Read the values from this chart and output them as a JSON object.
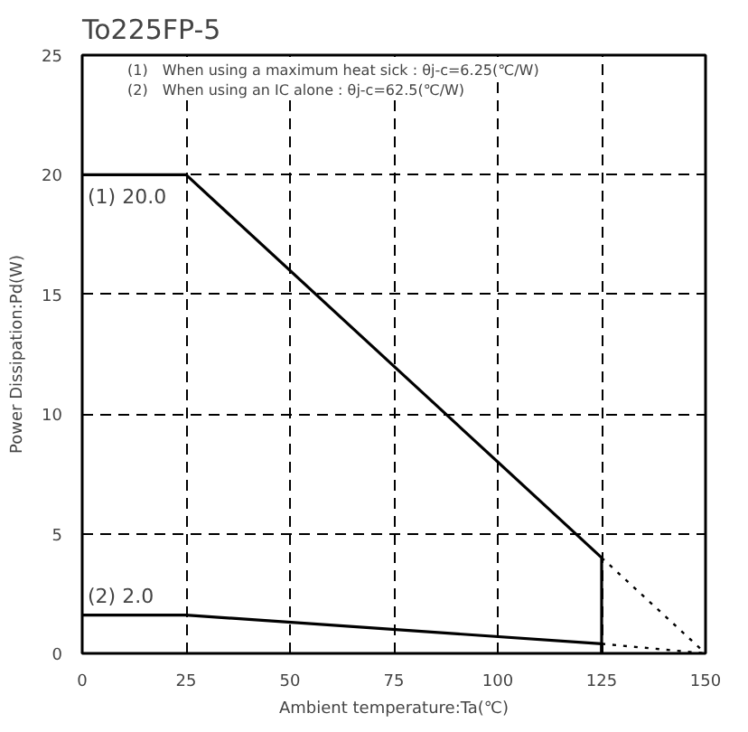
{
  "chart_data": {
    "type": "line",
    "title": "To225FP-5",
    "xlabel": "Ambient temperature:Ta(℃)",
    "ylabel": "Power Dissipation:Pd(W)",
    "xlim": [
      0,
      150
    ],
    "ylim": [
      0,
      25
    ],
    "xticks": [
      0,
      25,
      50,
      75,
      100,
      125,
      150
    ],
    "yticks": [
      0,
      5,
      10,
      15,
      20,
      25
    ],
    "grid": true,
    "series": [
      {
        "color": "#000000",
        "line_style": "solid",
        "x": [
          0,
          25,
          125,
          125
        ],
        "values": [
          20,
          20,
          4,
          0
        ]
      },
      {
        "color": "#000000",
        "line_style": "dotted",
        "x": [
          125,
          150
        ],
        "values": [
          4,
          0
        ]
      },
      {
        "color": "#000000",
        "line_style": "solid",
        "x": [
          0,
          25,
          125,
          125
        ],
        "values": [
          1.6,
          1.6,
          0.4,
          0
        ]
      },
      {
        "color": "#000000",
        "line_style": "dotted",
        "x": [
          125,
          150
        ],
        "values": [
          0.4,
          0
        ]
      }
    ],
    "annotations": [
      "(1)　When using a maximum heat sick :  θj-c=6.25(℃/W)",
      "(2)　When using an IC alone :  θj-c=62.5(℃/W)",
      {
        "text": "(1) 20.0",
        "x": 0,
        "y": 20
      },
      {
        "text": "(2) 2.0",
        "x": 0,
        "y": 1.6
      }
    ]
  }
}
